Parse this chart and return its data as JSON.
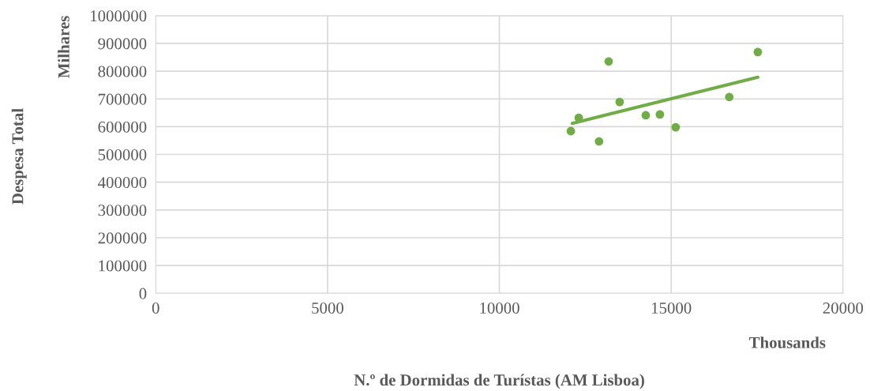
{
  "chart_data": {
    "type": "scatter",
    "xlabel": "N.º de Dormidas de Turístas (AM Lisboa)",
    "ylabel": "Despesa Total",
    "annotations": [
      "Milhares",
      "Thousands"
    ],
    "series": [
      {
        "color": "#70ad47",
        "x": [
          12080,
          12310,
          12900,
          13180,
          13500,
          14260,
          14670,
          15130,
          16690,
          17520
        ],
        "values": [
          584000,
          632000,
          547000,
          835000,
          689000,
          641000,
          644000,
          598000,
          707000,
          869000
        ]
      },
      {
        "type": "line",
        "marker": "none",
        "color": "#70ad47",
        "x": [
          12120,
          17520
        ],
        "values": [
          612000,
          778000
        ]
      }
    ],
    "xlim": [
      0,
      20000
    ],
    "xticks": [
      0,
      5000,
      10000,
      15000,
      20000
    ],
    "ylim": [
      0,
      1000000
    ],
    "yticks": [
      0,
      100000,
      200000,
      300000,
      400000,
      500000,
      600000,
      700000,
      800000,
      900000,
      1000000
    ],
    "grid": true,
    "marker": "circle"
  }
}
